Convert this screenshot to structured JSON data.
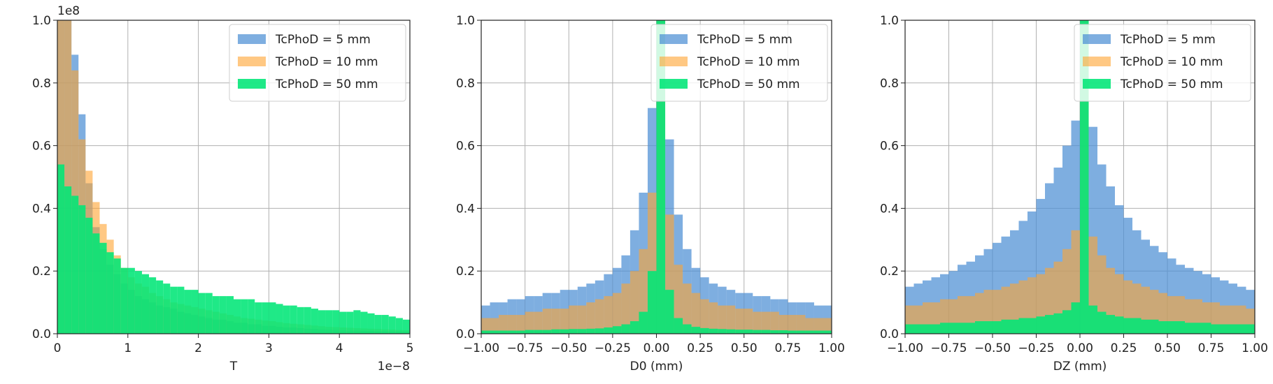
{
  "chart_data": [
    {
      "type": "histogram",
      "xlabel": "T",
      "ylabel": "",
      "x_offset_text": "1e−8",
      "y_offset_text": "1e8",
      "xlim": [
        0,
        5
      ],
      "ylim": [
        0,
        1.0
      ],
      "x_ticks": [
        0,
        1,
        2,
        3,
        4,
        5
      ],
      "x_tick_labels": [
        "0",
        "1",
        "2",
        "3",
        "4",
        "5"
      ],
      "y_ticks": [
        0.0,
        0.2,
        0.4,
        0.6,
        0.8,
        1.0
      ],
      "y_tick_labels": [
        "0.0",
        "0.2",
        "0.4",
        "0.6",
        "0.8",
        "1.0"
      ],
      "grid": true,
      "legend_position": "top-right",
      "bin_edges": [
        0.0,
        0.1,
        0.2,
        0.3,
        0.4,
        0.5,
        0.6,
        0.7,
        0.8,
        0.9,
        1.0,
        1.1,
        1.2,
        1.3,
        1.4,
        1.5,
        1.6,
        1.7,
        1.8,
        1.9,
        2.0,
        2.1,
        2.2,
        2.3,
        2.4,
        2.5,
        2.6,
        2.7,
        2.8,
        2.9,
        3.0,
        3.1,
        3.2,
        3.3,
        3.4,
        3.5,
        3.6,
        3.7,
        3.8,
        3.9,
        4.0,
        4.1,
        4.2,
        4.3,
        4.4,
        4.5,
        4.6,
        4.7,
        4.8,
        4.9,
        5.0
      ],
      "series": [
        {
          "name": "TcPhoD = 5 mm",
          "color": "#4c8fd4",
          "values": [
            1.0,
            1.0,
            0.89,
            0.7,
            0.48,
            0.34,
            0.27,
            0.22,
            0.19,
            0.16,
            0.14,
            0.12,
            0.11,
            0.1,
            0.09,
            0.085,
            0.08,
            0.07,
            0.065,
            0.06,
            0.055,
            0.05,
            0.045,
            0.045,
            0.04,
            0.035,
            0.035,
            0.03,
            0.03,
            0.025,
            0.025,
            0.022,
            0.02,
            0.02,
            0.018,
            0.016,
            0.015,
            0.014,
            0.013,
            0.012,
            0.011,
            0.01,
            0.01,
            0.009,
            0.009,
            0.008,
            0.008,
            0.007,
            0.007,
            0.006
          ]
        },
        {
          "name": "TcPhoD = 10 mm",
          "color": "#ffa431",
          "values": [
            1.0,
            1.0,
            0.84,
            0.62,
            0.52,
            0.42,
            0.35,
            0.3,
            0.25,
            0.21,
            0.18,
            0.16,
            0.15,
            0.13,
            0.12,
            0.11,
            0.1,
            0.095,
            0.09,
            0.085,
            0.08,
            0.075,
            0.07,
            0.065,
            0.06,
            0.055,
            0.05,
            0.048,
            0.045,
            0.042,
            0.04,
            0.037,
            0.034,
            0.032,
            0.03,
            0.028,
            0.026,
            0.024,
            0.022,
            0.021,
            0.02,
            0.019,
            0.018,
            0.017,
            0.016,
            0.015,
            0.014,
            0.013,
            0.012,
            0.011
          ]
        },
        {
          "name": "TcPhoD = 50 mm",
          "color": "#00e676",
          "values": [
            0.54,
            0.47,
            0.44,
            0.41,
            0.37,
            0.32,
            0.29,
            0.26,
            0.24,
            0.21,
            0.21,
            0.2,
            0.19,
            0.18,
            0.17,
            0.16,
            0.15,
            0.15,
            0.14,
            0.14,
            0.13,
            0.13,
            0.12,
            0.12,
            0.12,
            0.11,
            0.11,
            0.11,
            0.1,
            0.1,
            0.1,
            0.095,
            0.09,
            0.09,
            0.085,
            0.085,
            0.08,
            0.075,
            0.075,
            0.075,
            0.07,
            0.07,
            0.075,
            0.07,
            0.065,
            0.06,
            0.06,
            0.055,
            0.05,
            0.045
          ]
        }
      ]
    },
    {
      "type": "histogram",
      "xlabel": "D0 (mm)",
      "ylabel": "",
      "xlim": [
        -1.0,
        1.0
      ],
      "ylim": [
        0,
        1.0
      ],
      "x_ticks": [
        -1.0,
        -0.75,
        -0.5,
        -0.25,
        0.0,
        0.25,
        0.5,
        0.75,
        1.0
      ],
      "x_tick_labels": [
        "−1.00",
        "−0.75",
        "−0.50",
        "−0.25",
        "0.00",
        "0.25",
        "0.50",
        "0.75",
        "1.00"
      ],
      "y_ticks": [
        0.0,
        0.2,
        0.4,
        0.6,
        0.8,
        1.0
      ],
      "y_tick_labels": [
        "0.0",
        "0.2",
        "0.4",
        "0.6",
        "0.8",
        "1.0"
      ],
      "grid": true,
      "legend_position": "top-right",
      "bin_edges": [
        -1.0,
        -0.95,
        -0.9,
        -0.85,
        -0.8,
        -0.75,
        -0.7,
        -0.65,
        -0.6,
        -0.55,
        -0.5,
        -0.45,
        -0.4,
        -0.35,
        -0.3,
        -0.25,
        -0.2,
        -0.15,
        -0.1,
        -0.05,
        0.0,
        0.05,
        0.1,
        0.15,
        0.2,
        0.25,
        0.3,
        0.35,
        0.4,
        0.45,
        0.5,
        0.55,
        0.6,
        0.65,
        0.7,
        0.75,
        0.8,
        0.85,
        0.9,
        0.95,
        1.0
      ],
      "series": [
        {
          "name": "TcPhoD = 5 mm",
          "color": "#4c8fd4",
          "values": [
            0.09,
            0.1,
            0.1,
            0.11,
            0.11,
            0.12,
            0.12,
            0.13,
            0.13,
            0.14,
            0.14,
            0.15,
            0.16,
            0.17,
            0.19,
            0.21,
            0.25,
            0.33,
            0.45,
            0.72,
            1.0,
            0.62,
            0.38,
            0.27,
            0.21,
            0.18,
            0.16,
            0.15,
            0.14,
            0.13,
            0.13,
            0.12,
            0.12,
            0.11,
            0.11,
            0.1,
            0.1,
            0.1,
            0.09,
            0.09
          ]
        },
        {
          "name": "TcPhoD = 10 mm",
          "color": "#ffa431",
          "values": [
            0.05,
            0.05,
            0.06,
            0.06,
            0.06,
            0.07,
            0.07,
            0.08,
            0.08,
            0.08,
            0.09,
            0.09,
            0.1,
            0.11,
            0.12,
            0.13,
            0.16,
            0.2,
            0.27,
            0.45,
            1.0,
            0.38,
            0.22,
            0.16,
            0.13,
            0.11,
            0.1,
            0.09,
            0.09,
            0.08,
            0.08,
            0.07,
            0.07,
            0.07,
            0.06,
            0.06,
            0.06,
            0.05,
            0.05,
            0.05
          ]
        },
        {
          "name": "TcPhoD = 50 mm",
          "color": "#00e676",
          "values": [
            0.01,
            0.01,
            0.01,
            0.01,
            0.01,
            0.012,
            0.012,
            0.012,
            0.014,
            0.014,
            0.015,
            0.015,
            0.016,
            0.017,
            0.02,
            0.024,
            0.03,
            0.04,
            0.07,
            0.2,
            1.0,
            0.14,
            0.05,
            0.03,
            0.022,
            0.018,
            0.016,
            0.015,
            0.014,
            0.013,
            0.013,
            0.012,
            0.012,
            0.011,
            0.011,
            0.01,
            0.01,
            0.01,
            0.01,
            0.01
          ]
        }
      ]
    },
    {
      "type": "histogram",
      "xlabel": "DZ (mm)",
      "ylabel": "",
      "xlim": [
        -1.0,
        1.0
      ],
      "ylim": [
        0,
        1.0
      ],
      "x_ticks": [
        -1.0,
        -0.75,
        -0.5,
        -0.25,
        0.0,
        0.25,
        0.5,
        0.75,
        1.0
      ],
      "x_tick_labels": [
        "−1.00",
        "−0.75",
        "−0.50",
        "−0.25",
        "0.00",
        "0.25",
        "0.50",
        "0.75",
        "1.00"
      ],
      "y_ticks": [
        0.0,
        0.2,
        0.4,
        0.6,
        0.8,
        1.0
      ],
      "y_tick_labels": [
        "0.0",
        "0.2",
        "0.4",
        "0.6",
        "0.8",
        "1.0"
      ],
      "grid": true,
      "legend_position": "top-right",
      "bin_edges": [
        -1.0,
        -0.95,
        -0.9,
        -0.85,
        -0.8,
        -0.75,
        -0.7,
        -0.65,
        -0.6,
        -0.55,
        -0.5,
        -0.45,
        -0.4,
        -0.35,
        -0.3,
        -0.25,
        -0.2,
        -0.15,
        -0.1,
        -0.05,
        0.0,
        0.05,
        0.1,
        0.15,
        0.2,
        0.25,
        0.3,
        0.35,
        0.4,
        0.45,
        0.5,
        0.55,
        0.6,
        0.65,
        0.7,
        0.75,
        0.8,
        0.85,
        0.9,
        0.95,
        1.0
      ],
      "series": [
        {
          "name": "TcPhoD = 5 mm",
          "color": "#4c8fd4",
          "values": [
            0.15,
            0.16,
            0.17,
            0.18,
            0.19,
            0.2,
            0.22,
            0.23,
            0.25,
            0.27,
            0.29,
            0.31,
            0.33,
            0.36,
            0.39,
            0.43,
            0.48,
            0.53,
            0.6,
            0.68,
            1.0,
            0.66,
            0.54,
            0.47,
            0.41,
            0.37,
            0.33,
            0.3,
            0.28,
            0.26,
            0.24,
            0.22,
            0.21,
            0.2,
            0.19,
            0.18,
            0.17,
            0.16,
            0.15,
            0.14
          ]
        },
        {
          "name": "TcPhoD = 10 mm",
          "color": "#ffa431",
          "values": [
            0.09,
            0.09,
            0.1,
            0.1,
            0.11,
            0.11,
            0.12,
            0.12,
            0.13,
            0.14,
            0.14,
            0.15,
            0.16,
            0.17,
            0.18,
            0.19,
            0.21,
            0.23,
            0.27,
            0.33,
            1.0,
            0.31,
            0.25,
            0.21,
            0.19,
            0.17,
            0.16,
            0.15,
            0.14,
            0.13,
            0.12,
            0.12,
            0.11,
            0.11,
            0.1,
            0.1,
            0.09,
            0.09,
            0.09,
            0.08
          ]
        },
        {
          "name": "TcPhoD = 50 mm",
          "color": "#00e676",
          "values": [
            0.03,
            0.03,
            0.03,
            0.03,
            0.035,
            0.035,
            0.035,
            0.035,
            0.04,
            0.04,
            0.04,
            0.045,
            0.045,
            0.05,
            0.05,
            0.055,
            0.06,
            0.065,
            0.075,
            0.1,
            1.0,
            0.09,
            0.07,
            0.06,
            0.055,
            0.05,
            0.05,
            0.045,
            0.045,
            0.04,
            0.04,
            0.04,
            0.035,
            0.035,
            0.035,
            0.03,
            0.03,
            0.03,
            0.03,
            0.03
          ]
        }
      ]
    }
  ]
}
